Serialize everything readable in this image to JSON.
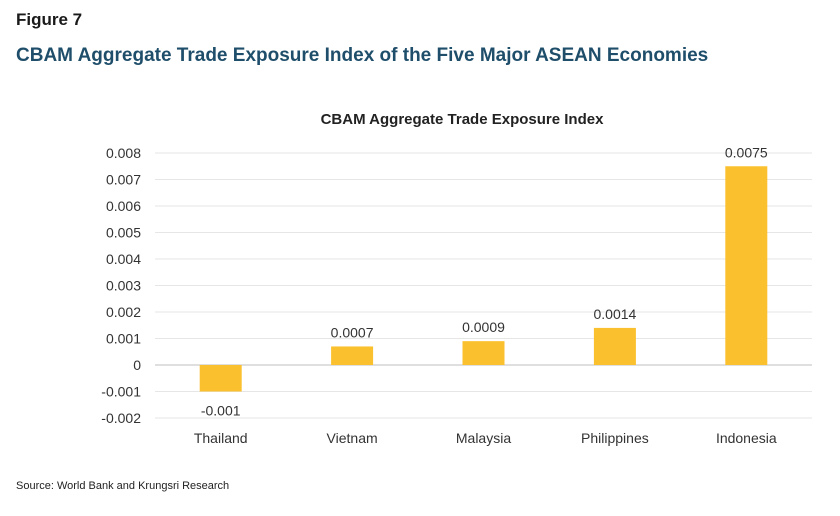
{
  "figure_label": "Figure 7",
  "figure_title": "CBAM Aggregate Trade Exposure Index of the Five Major ASEAN Economies",
  "source": "Source: World Bank and Krungsri Research",
  "colors": {
    "bar": "#FBC02D",
    "grid": "#e6e6e6",
    "axis": "#bfbfbf"
  },
  "chart_data": {
    "type": "bar",
    "title": "CBAM Aggregate Trade Exposure Index",
    "xlabel": "",
    "ylabel": "",
    "categories": [
      "Thailand",
      "Vietnam",
      "Malaysia",
      "Philippines",
      "Indonesia"
    ],
    "values": [
      -0.001,
      0.0007,
      0.0009,
      0.0014,
      0.0075
    ],
    "data_labels": [
      "-0.001",
      "0.0007",
      "0.0009",
      "0.0014",
      "0.0075"
    ],
    "ylim": [
      -0.002,
      0.008
    ],
    "yticks": [
      0.008,
      0.007,
      0.006,
      0.005,
      0.004,
      0.003,
      0.002,
      0.001,
      0,
      -0.001,
      -0.002
    ],
    "ytick_labels": [
      "0.008",
      "0.007",
      "0.006",
      "0.005",
      "0.004",
      "0.003",
      "0.002",
      "0.001",
      "0",
      "-0.001",
      "-0.002"
    ],
    "grid": true,
    "legend": "none"
  }
}
